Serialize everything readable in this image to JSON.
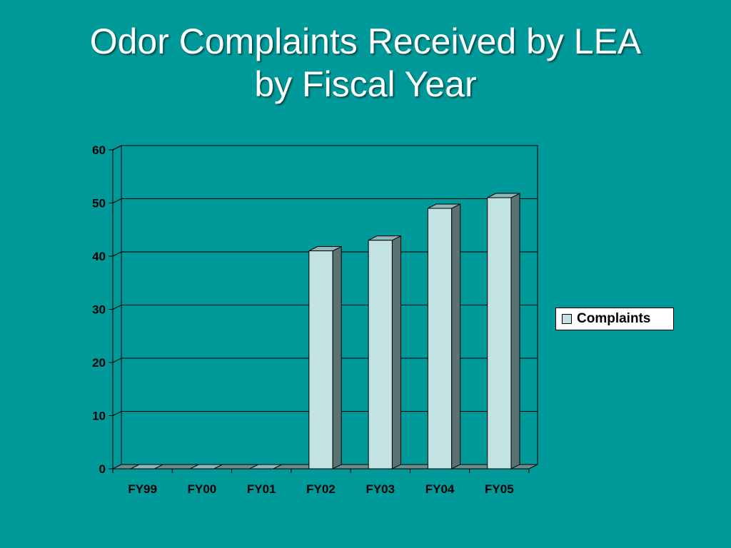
{
  "slide": {
    "title_line1": "Odor Complaints Received by LEA",
    "title_line2": "by Fiscal Year"
  },
  "colors": {
    "background": "#009999",
    "bar_front": "#c2e2e4",
    "bar_side": "#5b7272",
    "bar_top": "#8fb6b8",
    "floor": "#6f8a8a"
  },
  "chart_data": {
    "type": "bar",
    "style": "3d-column",
    "categories": [
      "FY99",
      "FY00",
      "FY01",
      "FY02",
      "FY03",
      "FY04",
      "FY05"
    ],
    "series": [
      {
        "name": "Complaints",
        "values": [
          0,
          0,
          0,
          41,
          43,
          49,
          51
        ]
      }
    ],
    "yticks": [
      "0",
      "10",
      "20",
      "30",
      "40",
      "50",
      "60"
    ],
    "ylim": [
      0,
      60
    ],
    "grid": true,
    "legend": "right",
    "title": "",
    "xlabel": "",
    "ylabel": ""
  }
}
